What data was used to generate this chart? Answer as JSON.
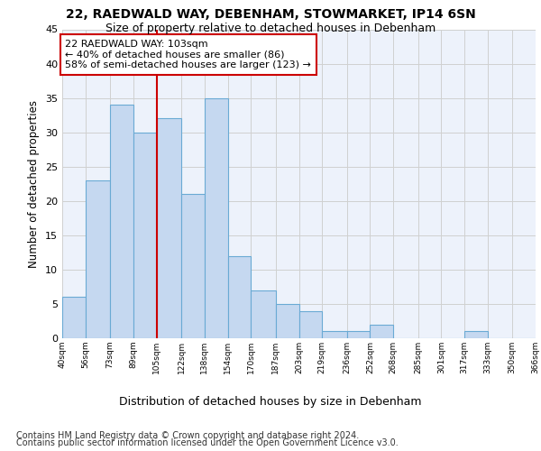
{
  "title1": "22, RAEDWALD WAY, DEBENHAM, STOWMARKET, IP14 6SN",
  "title2": "Size of property relative to detached houses in Debenham",
  "xlabel": "Distribution of detached houses by size in Debenham",
  "ylabel": "Number of detached properties",
  "bar_values": [
    6,
    23,
    34,
    30,
    32,
    21,
    35,
    12,
    7,
    5,
    4,
    1,
    1,
    2,
    0,
    0,
    0,
    1,
    0,
    0
  ],
  "bin_edges": [
    40,
    56,
    73,
    89,
    105,
    122,
    138,
    154,
    170,
    187,
    203,
    219,
    236,
    252,
    268,
    285,
    301,
    317,
    333,
    350,
    366
  ],
  "bin_labels": [
    "40sqm",
    "56sqm",
    "73sqm",
    "89sqm",
    "105sqm",
    "122sqm",
    "138sqm",
    "154sqm",
    "170sqm",
    "187sqm",
    "203sqm",
    "219sqm",
    "236sqm",
    "252sqm",
    "268sqm",
    "285sqm",
    "301sqm",
    "317sqm",
    "333sqm",
    "350sqm",
    "366sqm"
  ],
  "bar_color": "#c5d8f0",
  "bar_edgecolor": "#6aaad4",
  "bar_linewidth": 0.8,
  "vline_x": 105,
  "vline_color": "#cc0000",
  "ylim": [
    0,
    45
  ],
  "yticks": [
    0,
    5,
    10,
    15,
    20,
    25,
    30,
    35,
    40,
    45
  ],
  "annotation_text": "22 RAEDWALD WAY: 103sqm\n← 40% of detached houses are smaller (86)\n58% of semi-detached houses are larger (123) →",
  "annotation_box_color": "#cc0000",
  "annotation_fontsize": 8,
  "footer1": "Contains HM Land Registry data © Crown copyright and database right 2024.",
  "footer2": "Contains public sector information licensed under the Open Government Licence v3.0.",
  "title1_fontsize": 10,
  "title2_fontsize": 9,
  "xlabel_fontsize": 9,
  "ylabel_fontsize": 8.5,
  "footer_fontsize": 7,
  "grid_color": "#d0d0d0",
  "background_color": "#edf2fb"
}
